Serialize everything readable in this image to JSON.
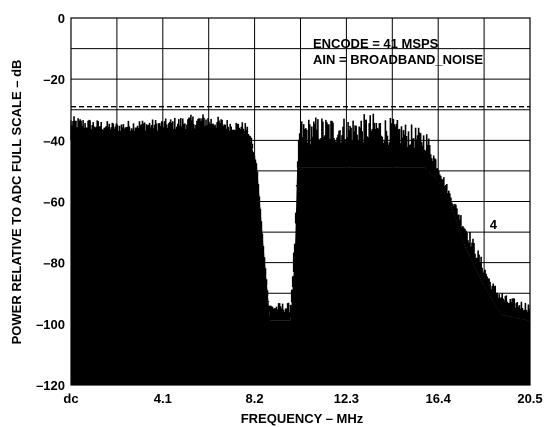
{
  "chart_data": {
    "type": "area",
    "title": "",
    "xlabel": "FREQUENCY – MHz",
    "ylabel": "POWER RELATIVE TO ADC FULL SCALE – dB",
    "x_tick_labels": [
      "dc",
      "4.1",
      "8.2",
      "12.3",
      "16.4",
      "20.5"
    ],
    "x_tick_values": [
      0,
      4.1,
      8.2,
      12.3,
      16.4,
      20.5
    ],
    "xlim": [
      0,
      20.5
    ],
    "y_ticks": [
      0,
      -20,
      -40,
      -60,
      -80,
      -100,
      -120
    ],
    "y_tick_labels": [
      "0",
      "–20",
      "–40",
      "–60",
      "–80",
      "–100",
      "–120"
    ],
    "ylim": [
      -120,
      0
    ],
    "grid": true,
    "reference_line": {
      "y": -29,
      "style": "dashed"
    },
    "annotations": [
      {
        "text": "ENCODE = 41 MSPS"
      },
      {
        "text": "AIN = BROADBAND_NOISE"
      },
      {
        "text": "4",
        "x": 18.7,
        "y": -69
      }
    ],
    "series": [
      {
        "values_description_free": true,
        "floor_points": [
          [
            0,
            -40
          ],
          [
            8.0,
            -40
          ],
          [
            8.3,
            -48
          ],
          [
            8.6,
            -75
          ],
          [
            8.9,
            -99
          ],
          [
            9.8,
            -99
          ],
          [
            10.0,
            -77
          ],
          [
            10.1,
            -49
          ],
          [
            15.8,
            -49
          ],
          [
            16.4,
            -53
          ],
          [
            17.0,
            -62
          ],
          [
            17.6,
            -75
          ],
          [
            18.4,
            -87
          ],
          [
            19.2,
            -97
          ],
          [
            20.5,
            -99
          ]
        ],
        "peak_points": [
          [
            0,
            -32
          ],
          [
            1.0,
            -33
          ],
          [
            2.0,
            -34
          ],
          [
            3.0,
            -33
          ],
          [
            4.1,
            -33
          ],
          [
            5.0,
            -32
          ],
          [
            6.0,
            -31
          ],
          [
            7.0,
            -33
          ],
          [
            7.8,
            -34
          ],
          [
            8.1,
            -40
          ],
          [
            8.4,
            -72
          ],
          [
            8.8,
            -93
          ],
          [
            9.8,
            -93
          ],
          [
            10.0,
            -70
          ],
          [
            10.2,
            -33
          ],
          [
            11.0,
            -32
          ],
          [
            12.3,
            -32
          ],
          [
            13.5,
            -31
          ],
          [
            14.5,
            -33
          ],
          [
            15.3,
            -35
          ],
          [
            15.9,
            -37
          ],
          [
            16.4,
            -47
          ],
          [
            17.0,
            -58
          ],
          [
            17.6,
            -66
          ],
          [
            18.2,
            -76
          ],
          [
            18.8,
            -86
          ],
          [
            19.5,
            -91
          ],
          [
            20.5,
            -93
          ]
        ]
      }
    ]
  }
}
